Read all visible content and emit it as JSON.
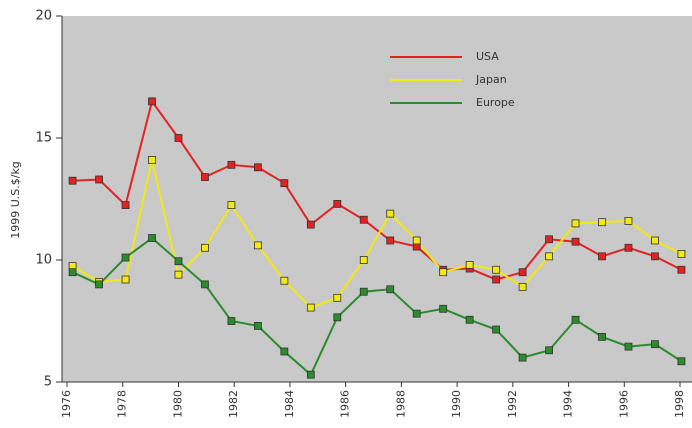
{
  "chart_data": {
    "type": "line",
    "y_label": "1999 U.S.$/kg",
    "x": [
      1976.2,
      1977.15,
      1978.1,
      1979.05,
      1980.0,
      1980.95,
      1981.9,
      1982.85,
      1983.8,
      1984.75,
      1985.7,
      1986.65,
      1987.6,
      1988.55,
      1989.5,
      1990.45,
      1991.4,
      1992.35,
      1993.3,
      1994.25,
      1995.2,
      1996.15,
      1997.1,
      1998.05
    ],
    "series": [
      {
        "name": "USA",
        "color": "#e32222",
        "values": [
          13.25,
          13.3,
          12.25,
          16.5,
          15,
          13.4,
          13.9,
          13.8,
          13.15,
          11.45,
          12.3,
          11.65,
          10.8,
          10.55,
          9.6,
          9.65,
          9.2,
          9.5,
          10.85,
          10.75,
          10.15,
          10.5,
          10.15,
          9.6
        ]
      },
      {
        "name": "Japan",
        "color": "#f2ea12",
        "values": [
          9.75,
          9.1,
          9.2,
          14.1,
          9.4,
          10.5,
          12.25,
          10.6,
          9.15,
          8.05,
          8.45,
          10.0,
          11.9,
          10.8,
          9.5,
          9.8,
          9.6,
          8.9,
          10.15,
          11.5,
          11.55,
          11.6,
          10.8,
          10.25
        ]
      },
      {
        "name": "Europe",
        "color": "#2b8c2b",
        "values": [
          9.5,
          9.0,
          10.1,
          10.9,
          9.95,
          9.0,
          7.5,
          7.3,
          6.25,
          5.3,
          7.65,
          8.7,
          8.8,
          7.8,
          8.0,
          7.55,
          7.15,
          6.0,
          6.3,
          7.55,
          6.85,
          6.45,
          6.55,
          5.85
        ]
      }
    ],
    "xlim": [
      1975.82,
      1998.43
    ],
    "xticks": [
      1976,
      1978,
      1980,
      1982,
      1984,
      1986,
      1988,
      1990,
      1992,
      1994,
      1996,
      1998
    ],
    "ylim": [
      5,
      20
    ],
    "yticks": [
      5,
      10,
      15,
      20
    ],
    "grid": false,
    "legend": "upper right",
    "background": "#c9c9c9"
  }
}
